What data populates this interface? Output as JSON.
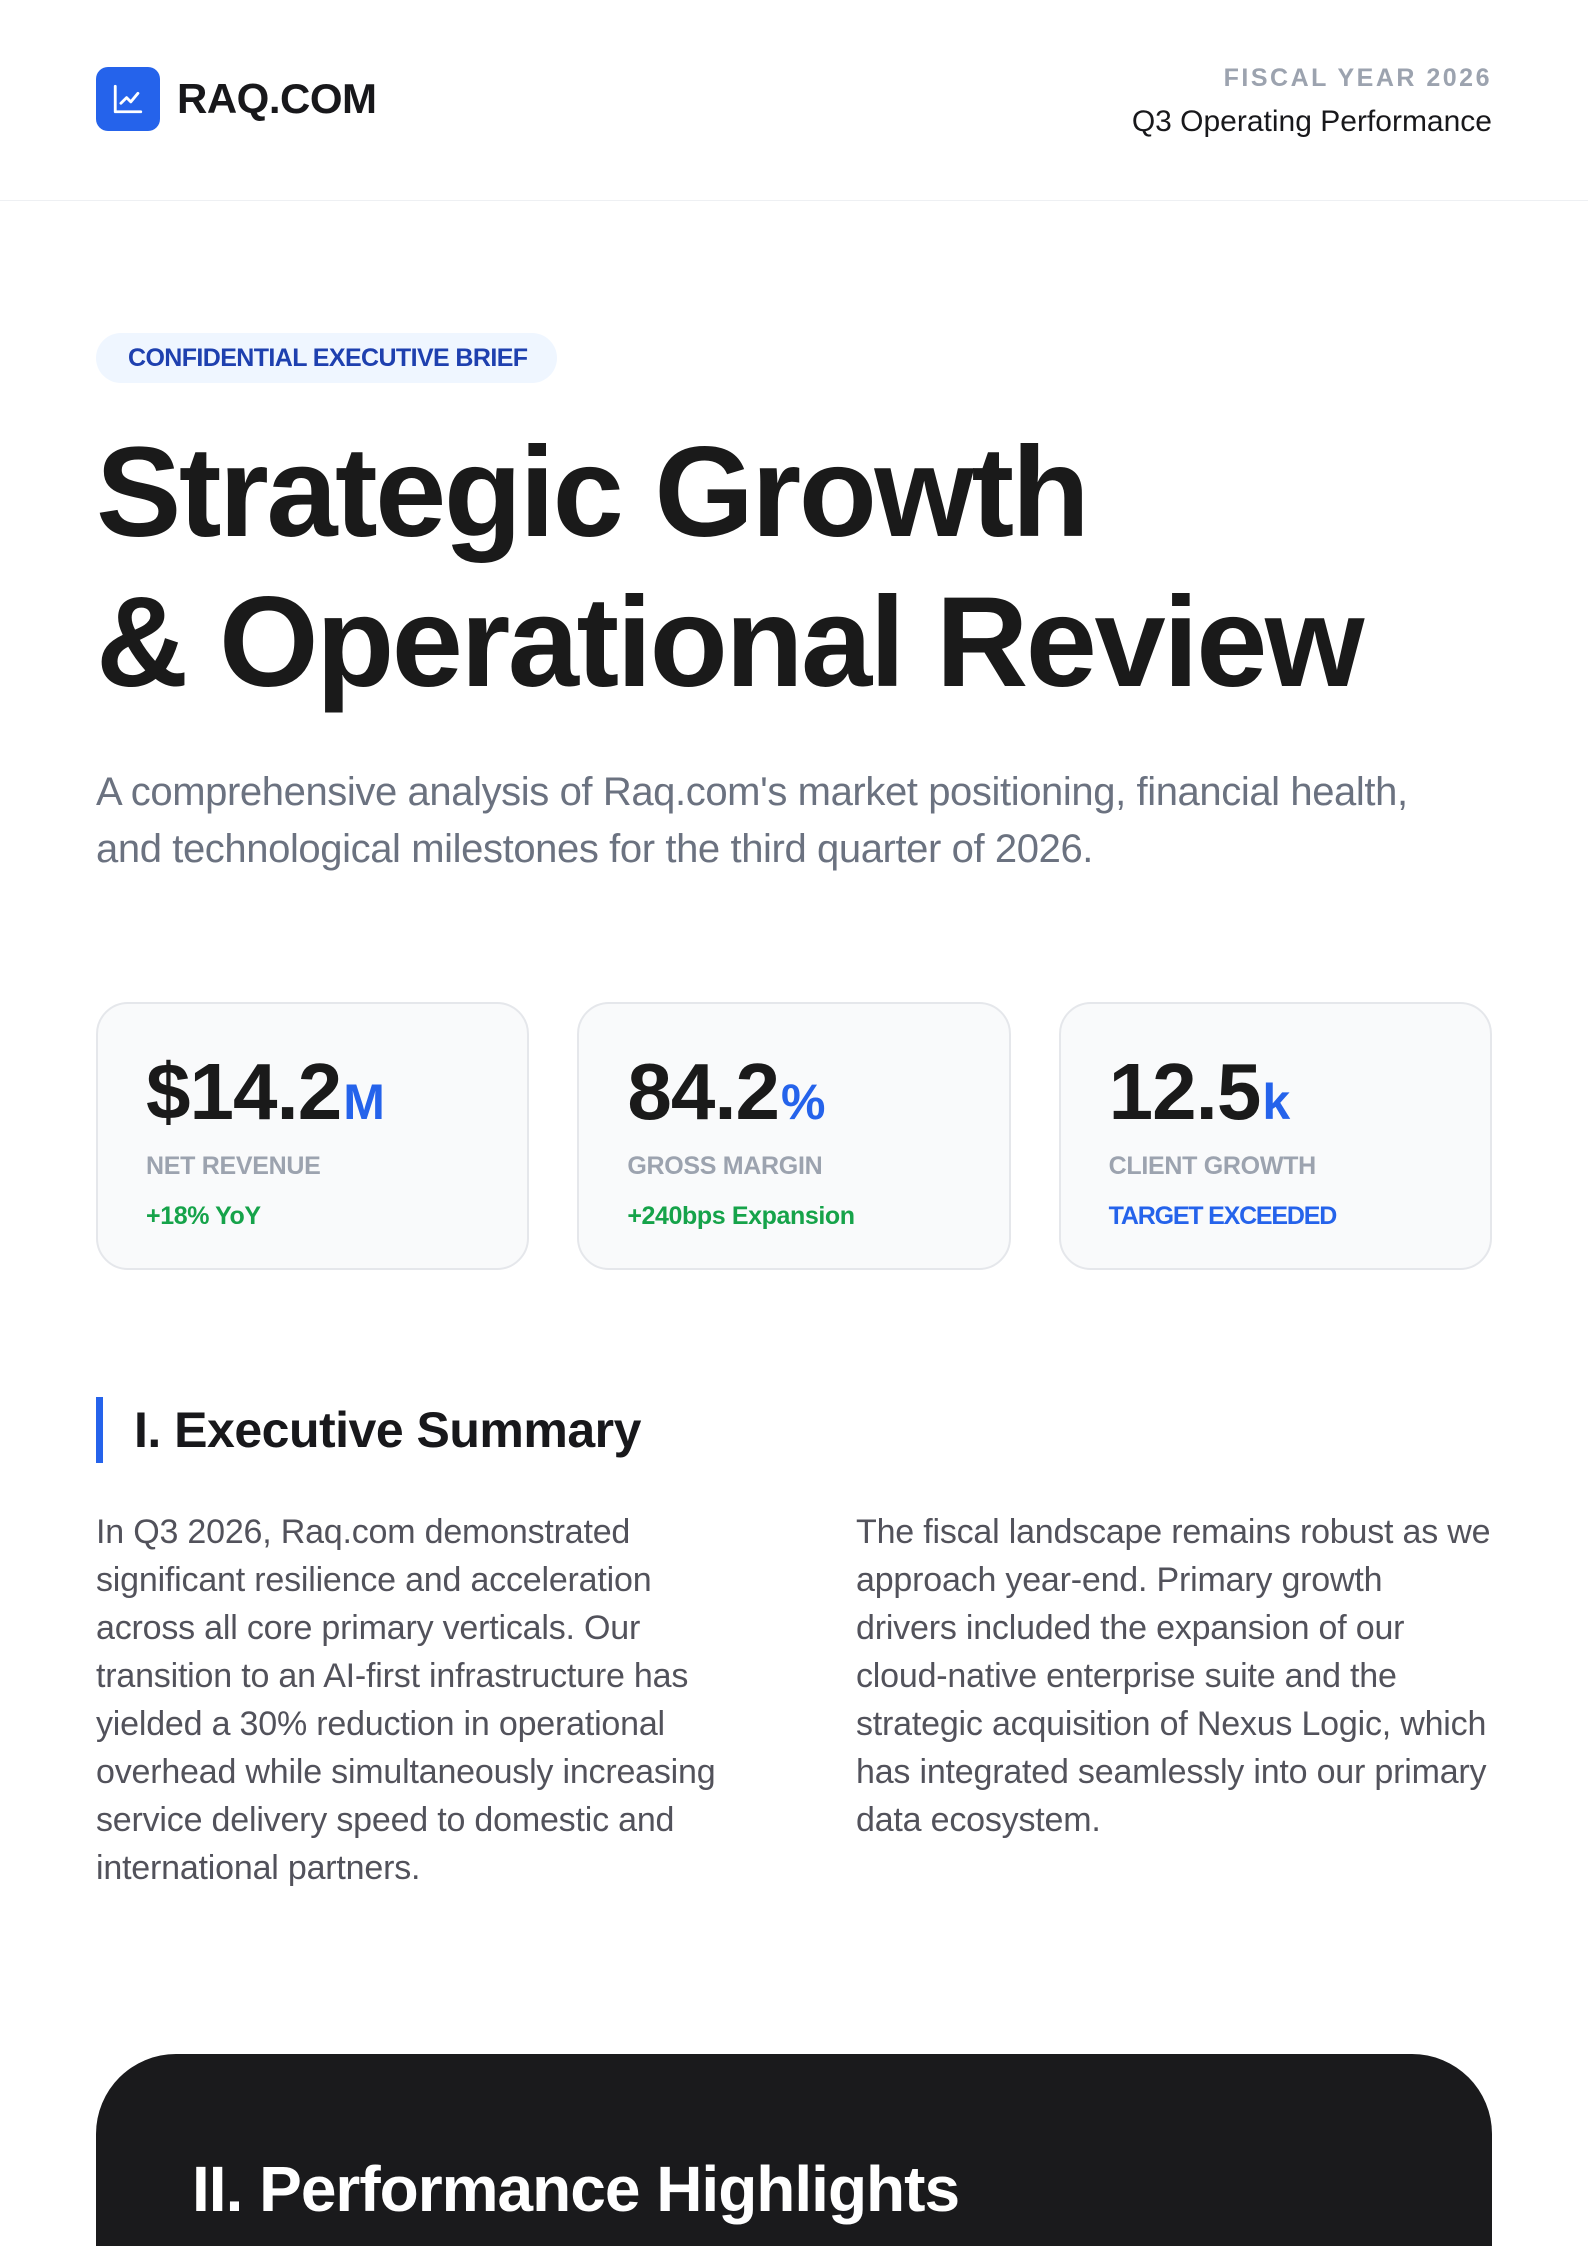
{
  "header": {
    "brand": "RAQ.COM",
    "logo_icon": "trend-chart-icon",
    "fiscal_year": "FISCAL YEAR 2026",
    "report_name": "Q3 Operating Performance"
  },
  "hero": {
    "badge": "CONFIDENTIAL EXECUTIVE BRIEF",
    "title_line1": "Strategic Growth",
    "title_line2": "& Operational Review",
    "subtitle": "A comprehensive analysis of Raq.com's market positioning, financial health, and technological milestones for the third quarter of 2026."
  },
  "stats": [
    {
      "value": "$14.2",
      "unit": "M",
      "label": "NET REVENUE",
      "trend": "+18% YoY",
      "trend_color": "#16a34a"
    },
    {
      "value": "84.2",
      "unit": "%",
      "label": "GROSS MARGIN",
      "trend": "+240bps Expansion",
      "trend_color": "#16a34a"
    },
    {
      "value": "12.5",
      "unit": "k",
      "label": "CLIENT GROWTH",
      "trend": "TARGET EXCEEDED",
      "trend_color": "#2563eb"
    }
  ],
  "summary": {
    "heading": "I. Executive Summary",
    "col1": "In Q3 2026, Raq.com demonstrated significant resilience and acceleration across all core primary verticals. Our transition to an AI-first infrastructure has yielded a 30% reduction in operational overhead while simultaneously increasing service delivery speed to domestic and international partners.",
    "col2": "The fiscal landscape remains robust as we approach year-end. Primary growth drivers included the expansion of our cloud-native enterprise suite and the strategic acquisition of Nexus Logic, which has integrated seamlessly into our primary data ecosystem."
  },
  "performance": {
    "heading": "II. Performance Highlights"
  },
  "colors": {
    "accent": "#2563eb",
    "positive": "#16a34a",
    "dark_panel": "#1a1a1c"
  }
}
